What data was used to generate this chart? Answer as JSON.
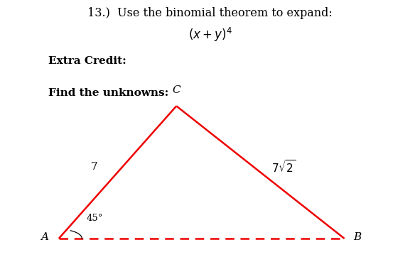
{
  "background_color": "#ffffff",
  "title_line1": "13.)  Use the binomial theorem to expand:",
  "title_line2_math": "(x + y)^4",
  "extra_credit_label": "Extra Credit:",
  "find_unknowns_label": "Find the unknowns:",
  "triangle": {
    "A": [
      0.14,
      0.145
    ],
    "B": [
      0.82,
      0.145
    ],
    "C": [
      0.42,
      0.62
    ]
  },
  "triangle_color": "#ee0000",
  "label_A": "A",
  "label_B": "B",
  "label_C": "C",
  "side_AC_label": "7",
  "angle_A_label": "45°",
  "text_color": "#000000"
}
